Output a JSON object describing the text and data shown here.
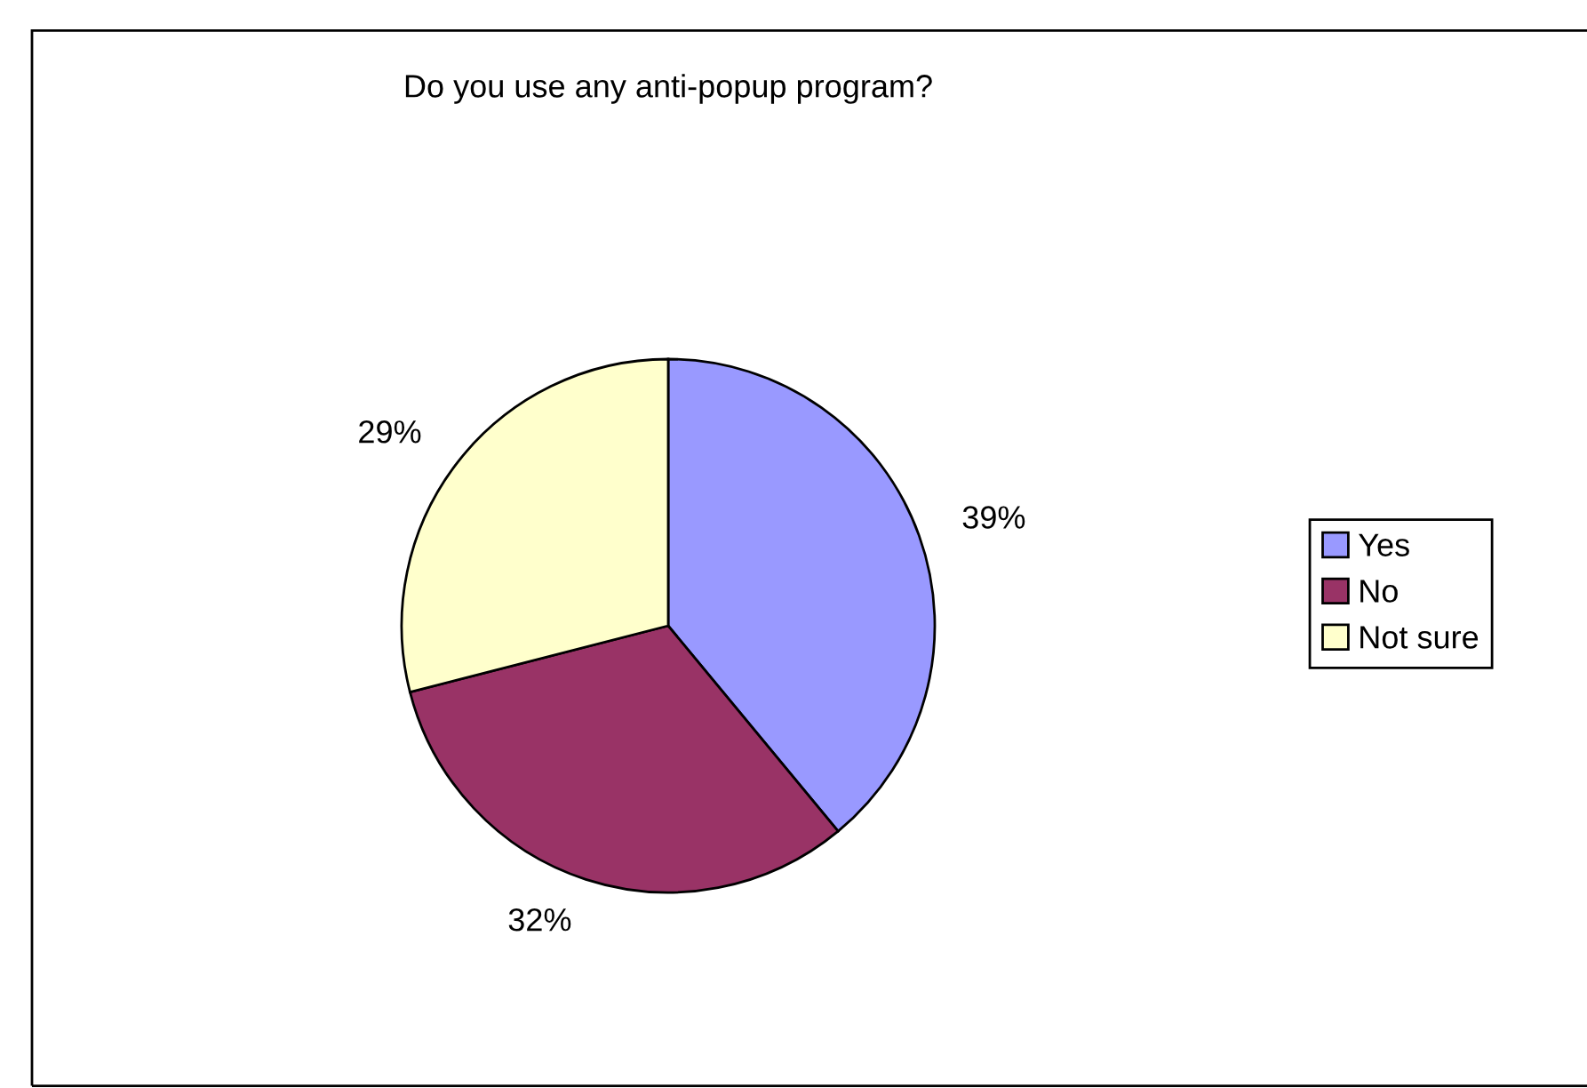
{
  "chart_data": {
    "type": "pie",
    "title": "Do you use any anti-popup program?",
    "categories": [
      "Yes",
      "No",
      "Not sure"
    ],
    "values": [
      39,
      32,
      29
    ],
    "colors": [
      "#9999ff",
      "#993366",
      "#ffffcc"
    ],
    "value_labels": [
      "39%",
      "32%",
      "29%"
    ],
    "legend": "right"
  }
}
